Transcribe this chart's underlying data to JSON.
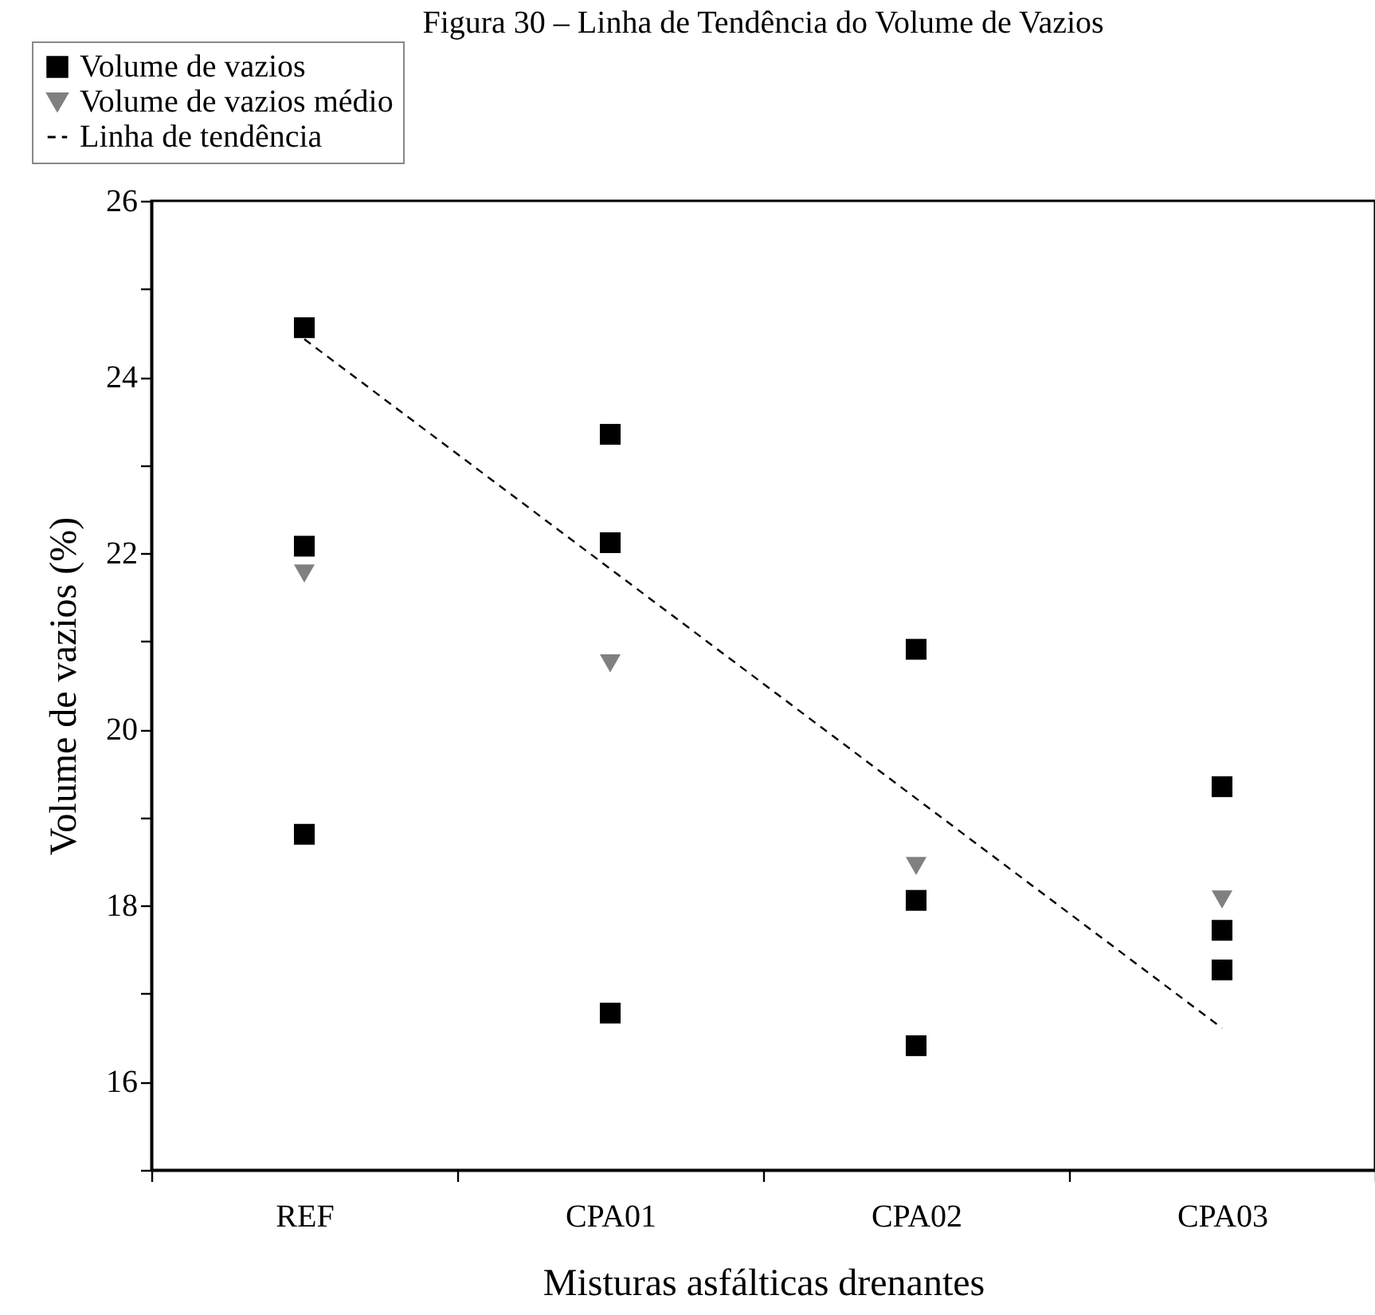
{
  "chart_data": {
    "type": "scatter",
    "title": "Figura 30 – Linha de Tendência do Volume de Vazios",
    "xlabel": "Misturas asfálticas drenantes",
    "ylabel": "Volume de vazios (%)",
    "categories": [
      "REF",
      "CPA01",
      "CPA02",
      "CPA03"
    ],
    "series": [
      {
        "name": "Volume de vazios",
        "type": "scatter",
        "marker": "square",
        "color": "#000000",
        "x": [
          "REF",
          "REF",
          "REF",
          "CPA01",
          "CPA01",
          "CPA01",
          "CPA02",
          "CPA02",
          "CPA02",
          "CPA03",
          "CPA03",
          "CPA03"
        ],
        "values": [
          24.56,
          22.08,
          18.81,
          23.35,
          22.12,
          16.78,
          20.91,
          18.06,
          16.41,
          19.35,
          17.72,
          17.27
        ]
      },
      {
        "name": "Volume de vazios médio",
        "type": "scatter",
        "marker": "triangle",
        "color": "#808080",
        "x": [
          "REF",
          "CPA01",
          "CPA02",
          "CPA03"
        ],
        "values": [
          21.77,
          20.75,
          18.45,
          18.07
        ]
      },
      {
        "name": "Linha de tendência",
        "type": "line",
        "line_style": "dashed",
        "marker": "none",
        "color": "#000000",
        "x": [
          "REF",
          "CPA03"
        ],
        "values": [
          24.43,
          16.61
        ]
      }
    ],
    "ylim": [
      15,
      26
    ],
    "yticks": [
      {
        "value": 15,
        "label": null
      },
      16,
      {
        "value": 17,
        "label": null
      },
      18,
      {
        "value": 19,
        "label": null
      },
      20,
      {
        "value": 21,
        "label": null
      },
      22,
      {
        "value": 23,
        "label": null
      },
      24,
      {
        "value": 25,
        "label": null
      },
      26
    ],
    "grid": false,
    "legend": "top left"
  }
}
